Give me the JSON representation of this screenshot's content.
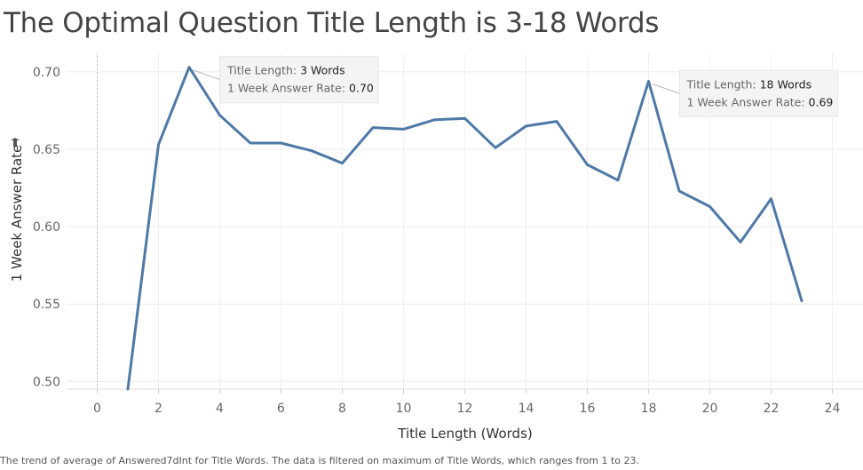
{
  "title": "The Optimal Question Title Length is 3-18 Words",
  "caption": "The trend of average of Answered7dInt for Title Words.  The data is filtered on maximum of Title Words, which ranges from 1 to 23.",
  "chart_data": {
    "type": "line",
    "xlabel": "Title Length (Words)",
    "ylabel": "1 Week Answer Rate",
    "xlim": [
      -1,
      25
    ],
    "ylim": [
      0.495,
      0.712
    ],
    "x_ticks": [
      0,
      2,
      4,
      6,
      8,
      10,
      12,
      14,
      16,
      18,
      20,
      22,
      24
    ],
    "y_ticks": [
      0.5,
      0.55,
      0.6,
      0.65,
      0.7
    ],
    "y_tick_labels": [
      "0.50",
      "0.55",
      "0.60",
      "0.65",
      "0.70"
    ],
    "grid": true,
    "line_color": "#4e79a7",
    "series": [
      {
        "x": [
          1,
          2,
          3,
          4,
          5,
          6,
          7,
          8,
          9,
          10,
          11,
          12,
          13,
          14,
          15,
          16,
          17,
          18,
          19,
          20,
          21,
          22,
          23
        ],
        "values": [
          0.495,
          0.653,
          0.703,
          0.672,
          0.654,
          0.654,
          0.649,
          0.641,
          0.664,
          0.663,
          0.669,
          0.67,
          0.651,
          0.665,
          0.668,
          0.64,
          0.63,
          0.694,
          0.623,
          0.613,
          0.59,
          0.618,
          0.552
        ]
      }
    ],
    "annotations": [
      {
        "x": 3,
        "y": 0.703,
        "line1_label": "Title Length:",
        "line1_value": "3 Words",
        "line2_label": "1 Week Answer Rate:",
        "line2_value": "0.70"
      },
      {
        "x": 18,
        "y": 0.694,
        "line1_label": "Title Length:",
        "line1_value": "18 Words",
        "line2_label": "1 Week Answer Rate:",
        "line2_value": "0.69"
      }
    ]
  }
}
